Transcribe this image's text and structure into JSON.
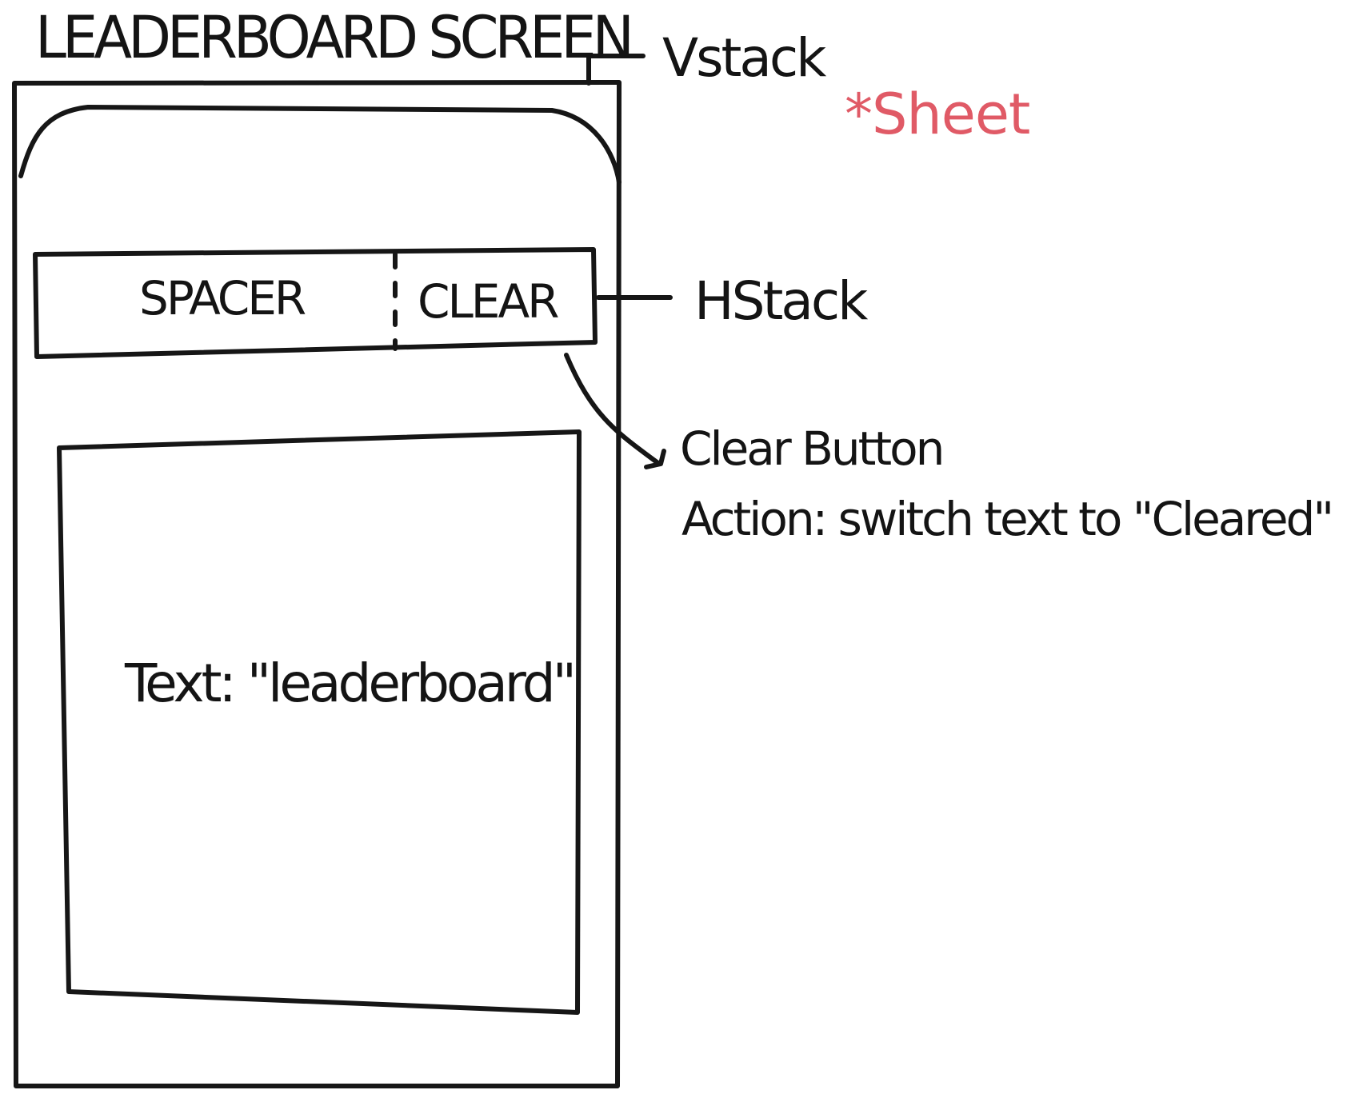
{
  "screen_title": "LEADERBOARD SCREEN",
  "annotations": {
    "vstack": "Vstack",
    "sheet": "*Sheet",
    "hstack": "HStack",
    "clear_button": "Clear Button",
    "action": "Action: switch text to \"Cleared\""
  },
  "hstack_row": {
    "spacer_label": "SPACER",
    "clear_label": "CLEAR"
  },
  "content_box": {
    "text": "Text: \"leaderboard\""
  },
  "colors": {
    "ink": "#161616",
    "sheet_accent": "#e05a66",
    "background": "#ffffff"
  }
}
